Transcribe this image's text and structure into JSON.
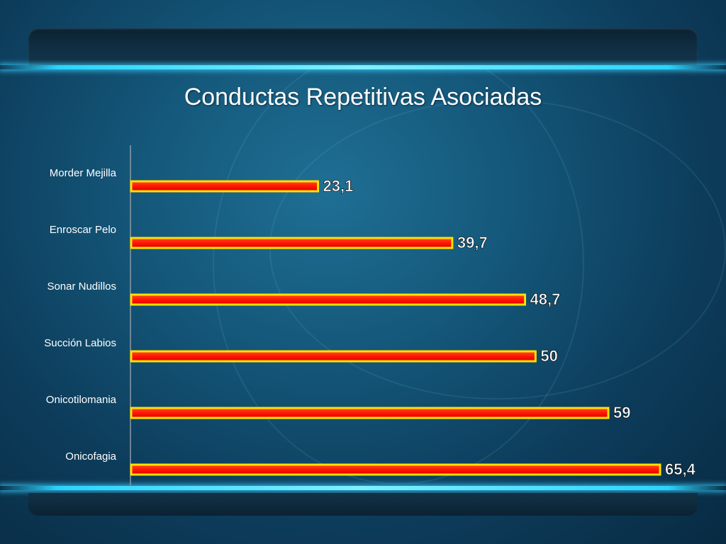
{
  "chart_data": {
    "type": "bar",
    "orientation": "horizontal",
    "title": "Conductas Repetitivas Asociadas",
    "categories": [
      "Morder Mejilla",
      "Enroscar Pelo",
      "Sonar Nudillos",
      "Succión Labios",
      "Onicotilomania",
      "Onicofagia"
    ],
    "values": [
      23.1,
      39.7,
      48.7,
      50,
      59,
      65.4
    ],
    "value_labels": [
      "23,1",
      "39,7",
      "48,7",
      "50",
      "59",
      "65,4"
    ],
    "xlim": [
      0,
      65.4
    ],
    "xlabel": "",
    "ylabel": "",
    "grid": false,
    "legend": "none",
    "bar_color": "#ff1a00",
    "bar_border_color": "#ffe000"
  }
}
